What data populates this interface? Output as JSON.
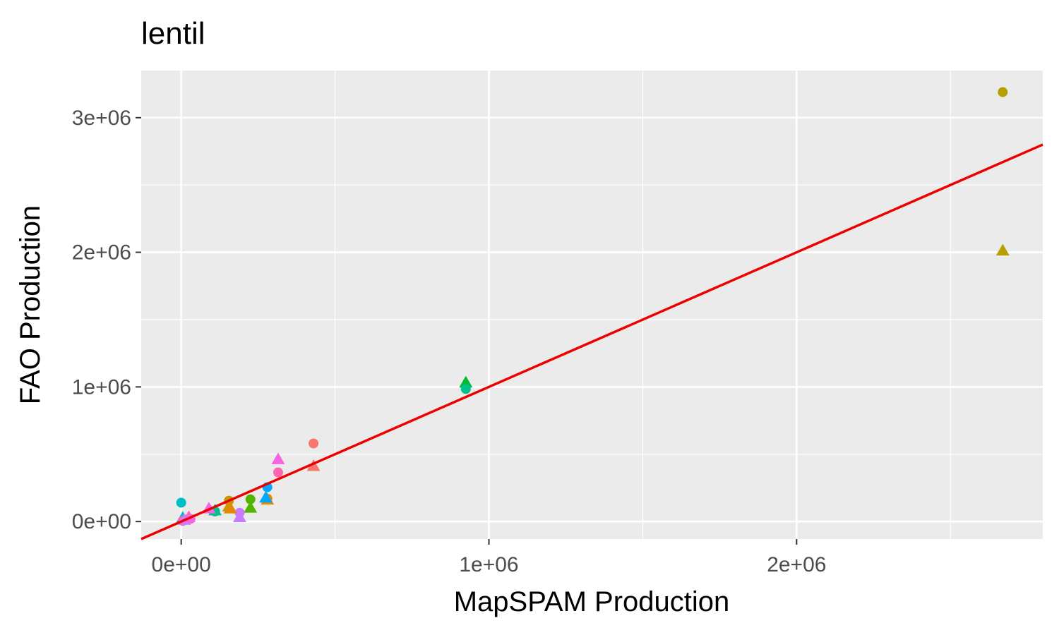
{
  "chart_data": {
    "type": "scatter",
    "title": "lentil",
    "xlabel": "MapSPAM Production",
    "ylabel": "FAO Production",
    "xlim": [
      -130000,
      2800000
    ],
    "ylim": [
      -130000,
      3350000
    ],
    "x_ticks": [
      {
        "value": 0,
        "label": "0e+00"
      },
      {
        "value": 1000000,
        "label": "1e+06"
      },
      {
        "value": 2000000,
        "label": "2e+06"
      }
    ],
    "y_ticks": [
      {
        "value": 0,
        "label": "0e+00"
      },
      {
        "value": 1000000,
        "label": "1e+06"
      },
      {
        "value": 2000000,
        "label": "2e+06"
      },
      {
        "value": 3000000,
        "label": "3e+06"
      }
    ],
    "grid": true,
    "legend": "none",
    "reference_line": {
      "slope": 1,
      "intercept": 0,
      "color": "#ee0000"
    },
    "points": [
      {
        "x": 2670000,
        "y": 3190000,
        "shape": "circle",
        "color": "#b79f00"
      },
      {
        "x": 2670000,
        "y": 2010000,
        "shape": "triangle",
        "color": "#b79f00"
      },
      {
        "x": 925000,
        "y": 1030000,
        "shape": "triangle",
        "color": "#00ba38"
      },
      {
        "x": 925000,
        "y": 985000,
        "shape": "circle",
        "color": "#00c08b"
      },
      {
        "x": 430000,
        "y": 580000,
        "shape": "circle",
        "color": "#f8766d"
      },
      {
        "x": 430000,
        "y": 410000,
        "shape": "triangle",
        "color": "#f8766d"
      },
      {
        "x": 315000,
        "y": 460000,
        "shape": "triangle",
        "color": "#f564e3"
      },
      {
        "x": 315000,
        "y": 365000,
        "shape": "circle",
        "color": "#ff64b0"
      },
      {
        "x": 280000,
        "y": 255000,
        "shape": "circle",
        "color": "#00a9ff"
      },
      {
        "x": 280000,
        "y": 170000,
        "shape": "circle",
        "color": "#e58700"
      },
      {
        "x": 280000,
        "y": 160000,
        "shape": "triangle",
        "color": "#e58700"
      },
      {
        "x": 275000,
        "y": 175000,
        "shape": "triangle",
        "color": "#00a9ff"
      },
      {
        "x": 225000,
        "y": 165000,
        "shape": "circle",
        "color": "#53b400"
      },
      {
        "x": 225000,
        "y": 100000,
        "shape": "triangle",
        "color": "#53b400"
      },
      {
        "x": 190000,
        "y": 65000,
        "shape": "circle",
        "color": "#c77cff"
      },
      {
        "x": 190000,
        "y": 30000,
        "shape": "triangle",
        "color": "#c77cff"
      },
      {
        "x": 155000,
        "y": 155000,
        "shape": "circle",
        "color": "#c49a00"
      },
      {
        "x": 155000,
        "y": 110000,
        "shape": "triangle",
        "color": "#c49a00"
      },
      {
        "x": 160000,
        "y": 95000,
        "shape": "triangle",
        "color": "#e58700"
      },
      {
        "x": 110000,
        "y": 75000,
        "shape": "circle",
        "color": "#00c08b"
      },
      {
        "x": 110000,
        "y": 80000,
        "shape": "triangle",
        "color": "#00c08b"
      },
      {
        "x": 90000,
        "y": 95000,
        "shape": "triangle",
        "color": "#f564e3"
      },
      {
        "x": 0,
        "y": 140000,
        "shape": "circle",
        "color": "#00bfc4"
      },
      {
        "x": 5000,
        "y": 25000,
        "shape": "triangle",
        "color": "#00bfc4"
      },
      {
        "x": 5000,
        "y": 5000,
        "shape": "circle",
        "color": "#ff64b0"
      },
      {
        "x": 20000,
        "y": 15000,
        "shape": "circle",
        "color": "#f8766d"
      },
      {
        "x": 25000,
        "y": 30000,
        "shape": "triangle",
        "color": "#ff64b0"
      },
      {
        "x": 10000,
        "y": 10000,
        "shape": "triangle",
        "color": "#c77cff"
      },
      {
        "x": 30000,
        "y": 20000,
        "shape": "circle",
        "color": "#f564e3"
      }
    ]
  }
}
